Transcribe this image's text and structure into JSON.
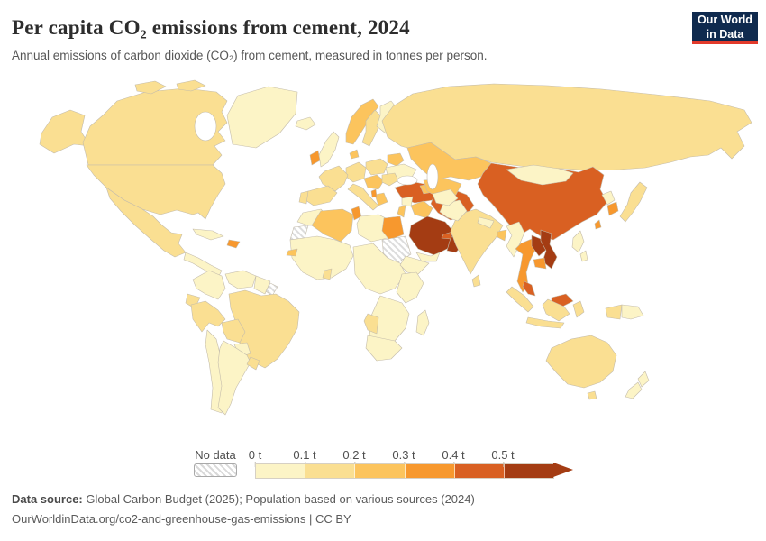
{
  "header": {
    "title": "Per capita CO₂ emissions from cement, 2024",
    "subtitle": "Annual emissions of carbon dioxide (CO₂) from cement, measured in tonnes per person."
  },
  "logo": {
    "line1": "Our World",
    "line2": "in Data",
    "bg_color": "#0f2a4e",
    "accent_color": "#e23a2b"
  },
  "legend": {
    "no_data_label": "No data",
    "ticks": [
      "0 t",
      "0.1 t",
      "0.2 t",
      "0.3 t",
      "0.4 t",
      "0.5 t"
    ]
  },
  "footer": {
    "source_label": "Data source:",
    "source_text": "Global Carbon Budget (2025); Population based on various sources (2024)",
    "citation": "OurWorldinData.org/co2-and-greenhouse-gas-emissions | CC BY"
  },
  "chart_data": {
    "type": "heatmap",
    "subtype": "world-choropleth-map",
    "title": "Per capita CO₂ emissions from cement, 2024",
    "unit": "tonnes of CO₂ per person",
    "legend_position": "bottom",
    "bins": [
      {
        "range": "0 t – 0.1 t",
        "color": "#fcf4c6"
      },
      {
        "range": "0.1 t – 0.2 t",
        "color": "#fadf92"
      },
      {
        "range": "0.2 t – 0.3 t",
        "color": "#fcc45d"
      },
      {
        "range": "0.3 t – 0.4 t",
        "color": "#f7982e"
      },
      {
        "range": "0.4 t – 0.5 t",
        "color": "#d96022"
      },
      {
        "range": "> 0.5 t",
        "color": "#a43c13"
      }
    ],
    "no_data_countries": [
      "Sudan",
      "Western Sahara",
      "French Guiana"
    ],
    "countries": {
      "Greenland": 0,
      "Guatemala": 0,
      "Cuba": 0,
      "Colombia": 0,
      "Venezuela": 0,
      "Guyana": 0,
      "Paraguay": 0,
      "Chile": 0,
      "Argentina": 0,
      "United Kingdom": 0,
      "Iceland": 0,
      "Finland": 0,
      "Ukraine": 0,
      "Morocco": 0,
      "Libya": 0,
      "Nigeria": 0,
      "Democratic Republic of Congo": 0,
      "Ethiopia": 0,
      "Tanzania": 0,
      "Angola": 0,
      "South Africa": 0,
      "Madagascar": 0,
      "Syria": 0,
      "Yemen": 0,
      "Afghanistan": 0,
      "Pakistan": 0,
      "Nepal": 0,
      "Myanmar": 0,
      "Mongolia": 0,
      "North Korea": 0,
      "Philippines": 0,
      "Papua New Guinea": 0,
      "New Zealand": 0,
      "Canada": 1,
      "United States": 1,
      "Mexico": 1,
      "Brazil": 1,
      "Ecuador": 1,
      "Peru": 1,
      "Bolivia": 1,
      "Uruguay": 1,
      "Russia": 1,
      "Sweden": 1,
      "Germany": 1,
      "France": 1,
      "Spain": 1,
      "Portugal": 1,
      "Italy": 1,
      "Poland": 1,
      "Romania": 1,
      "Namibia": 1,
      "Ghana": 1,
      "India": 1,
      "Sri Lanka": 1,
      "Japan": 1,
      "Indonesia": 1,
      "Australia": 1,
      "Norway": 2,
      "Denmark": 2,
      "Belarus": 2,
      "Austria": 2,
      "Greece": 2,
      "Algeria": 2,
      "Senegal": 2,
      "Jordan": 2,
      "Iraq": 2,
      "Georgia": 2,
      "Kazakhstan": 2,
      "Uzbekistan": 2,
      "Bangladesh": 2,
      "Ireland": 3,
      "Albania": 3,
      "Tunisia": 3,
      "Egypt": 3,
      "Dominican Republic": 3,
      "Thailand": 3,
      "Cambodia": 3,
      "South Korea": 3,
      "Taiwan": 3,
      "Turkey": 4,
      "Iran": 4,
      "United Arab Emirates": 4,
      "China": 4,
      "Malaysia": 4,
      "Saudi Arabia": 5,
      "Oman": 5,
      "Vietnam": 5,
      "Laos": 5
    }
  }
}
